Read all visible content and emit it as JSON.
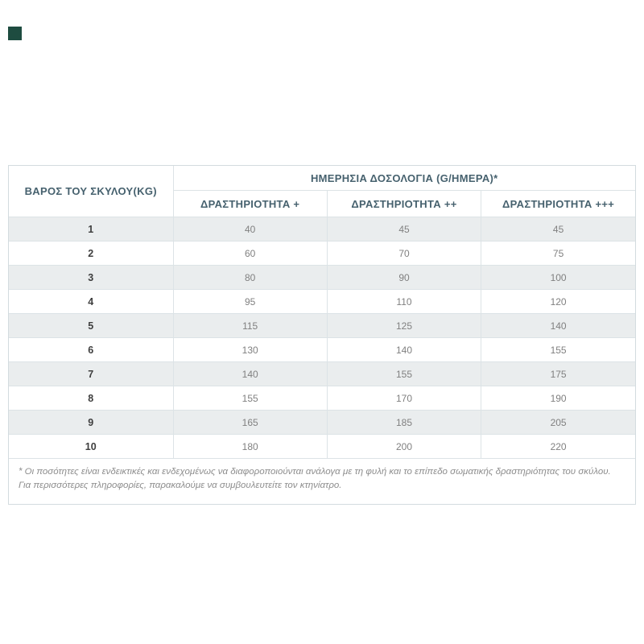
{
  "page": {
    "background": "#ffffff"
  },
  "table": {
    "weight_header": "ΒΑΡΟΣ ΤΟΥ ΣΚΥΛΟΥ(KG)",
    "dosage_header": "ΗΜΕΡΗΣΙΑ ΔΟΣΟΛΟΓΙΑ (G/ΗΜΕΡΑ)*",
    "activity_headers": [
      "ΔΡΑΣΤΗΡΙΟΤΗΤΑ +",
      "ΔΡΑΣΤΗΡΙΟΤΗΤΑ ++",
      "ΔΡΑΣΤΗΡΙΟΤΗΤΑ +++"
    ],
    "rows": [
      {
        "weight": "1",
        "values": [
          "40",
          "45",
          "45"
        ]
      },
      {
        "weight": "2",
        "values": [
          "60",
          "70",
          "75"
        ]
      },
      {
        "weight": "3",
        "values": [
          "80",
          "90",
          "100"
        ]
      },
      {
        "weight": "4",
        "values": [
          "95",
          "110",
          "120"
        ]
      },
      {
        "weight": "5",
        "values": [
          "115",
          "125",
          "140"
        ]
      },
      {
        "weight": "6",
        "values": [
          "130",
          "140",
          "155"
        ]
      },
      {
        "weight": "7",
        "values": [
          "140",
          "155",
          "175"
        ]
      },
      {
        "weight": "8",
        "values": [
          "155",
          "170",
          "190"
        ]
      },
      {
        "weight": "9",
        "values": [
          "165",
          "185",
          "205"
        ]
      },
      {
        "weight": "10",
        "values": [
          "180",
          "200",
          "220"
        ]
      }
    ],
    "footnote": "* Οι ποσότητες είναι ενδεικτικές και ενδεχομένως να διαφοροποιούνται ανάλογα με τη φυλή και το επίπεδο σωματικής δραστηριότητας του σκύλου. Για περισσότερες πληροφορίες, παρακαλούμε να συμβουλευτείτε τον κτηνίατρο."
  },
  "colors": {
    "header_text": "#46616e",
    "weight_text": "#3e3e3e",
    "value_text": "#808080",
    "row_stripe": "#eaedee",
    "border": "#dce3e6",
    "footnote_text": "#8d8d8d",
    "corner_mark": "#1e4c40"
  }
}
